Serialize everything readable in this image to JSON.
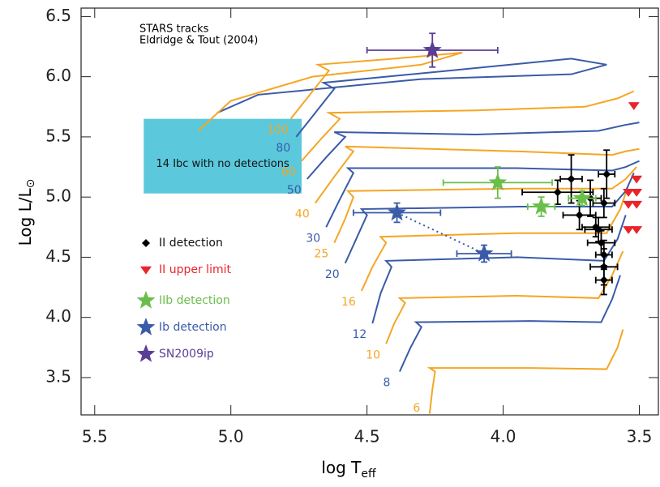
{
  "chart_data": {
    "type": "scatter",
    "annotations": [
      "STARS tracks",
      "Eldridge & Tout (2004)"
    ],
    "xlabel": "log T",
    "xlabel_sub": "eff",
    "ylabel": "Log L/L",
    "ylabel_sub": "⊙",
    "xlim": [
      5.55,
      3.43
    ],
    "ylim": [
      3.19,
      6.57
    ],
    "xticks": [
      5.5,
      {
        "value": 5,
        "label": "5.0"
      },
      4.5,
      {
        "value": 4,
        "label": "4.0"
      },
      3.5
    ],
    "yticks": [
      3.5,
      {
        "value": 4,
        "label": "4.0"
      },
      4.5,
      {
        "value": 5,
        "label": "5.0"
      },
      5.5,
      {
        "value": 6,
        "label": "6.0"
      },
      6.5
    ],
    "legend": "center left",
    "region": {
      "label": "14 Ibc with no detections",
      "color": "#5bc8dc",
      "x": [
        5.32,
        4.74
      ],
      "y": [
        5.03,
        5.65
      ]
    },
    "tracks": [
      {
        "name": "6",
        "color": "#f5a623",
        "x": [
          4.27,
          4.26,
          4.25,
          4.27,
          3.9,
          3.62,
          3.58,
          3.56
        ],
        "y": [
          3.2,
          3.4,
          3.55,
          3.58,
          3.58,
          3.57,
          3.75,
          3.9
        ]
      },
      {
        "name": "8",
        "color": "#3a5ba8",
        "x": [
          4.38,
          4.34,
          4.3,
          4.32,
          3.9,
          3.64,
          3.6,
          3.57
        ],
        "y": [
          3.55,
          3.75,
          3.92,
          3.96,
          3.97,
          3.96,
          4.15,
          4.35
        ]
      },
      {
        "name": "10",
        "color": "#f5a623",
        "x": [
          4.43,
          4.4,
          4.36,
          4.38,
          3.95,
          3.65,
          3.6,
          3.56
        ],
        "y": [
          3.78,
          3.95,
          4.12,
          4.16,
          4.18,
          4.16,
          4.35,
          4.55
        ]
      },
      {
        "name": "12",
        "color": "#3a5ba8",
        "x": [
          4.48,
          4.45,
          4.41,
          4.43,
          3.95,
          3.63,
          3.58,
          3.55
        ],
        "y": [
          3.95,
          4.2,
          4.42,
          4.47,
          4.5,
          4.47,
          4.65,
          4.85
        ]
      },
      {
        "name": "16",
        "color": "#f5a623",
        "x": [
          4.52,
          4.48,
          4.43,
          4.45,
          3.95,
          3.62,
          3.57,
          3.54
        ],
        "y": [
          4.22,
          4.42,
          4.62,
          4.67,
          4.7,
          4.7,
          4.9,
          5.1
        ]
      },
      {
        "name": "20",
        "color": "#3a5ba8",
        "x": [
          4.58,
          4.54,
          4.5,
          4.52,
          3.95,
          3.6,
          3.55,
          3.52
        ],
        "y": [
          4.45,
          4.65,
          4.85,
          4.9,
          4.92,
          4.92,
          5.05,
          5.2
        ]
      },
      {
        "name": "25",
        "color": "#f5a623",
        "x": [
          4.62,
          4.58,
          4.55,
          4.57,
          3.95,
          3.6,
          3.55,
          3.51
        ],
        "y": [
          4.62,
          4.82,
          5.0,
          5.05,
          5.07,
          5.07,
          5.15,
          5.25
        ]
      },
      {
        "name": "30",
        "color": "#3a5ba8",
        "x": [
          4.65,
          4.6,
          4.55,
          4.57,
          3.95,
          3.6,
          3.55,
          3.5
        ],
        "y": [
          4.75,
          4.98,
          5.2,
          5.24,
          5.24,
          5.22,
          5.25,
          5.3
        ]
      },
      {
        "name": "40",
        "color": "#f5a623",
        "x": [
          4.69,
          4.62,
          4.55,
          4.58,
          3.95,
          3.6,
          3.55,
          3.5
        ],
        "y": [
          4.95,
          5.17,
          5.38,
          5.42,
          5.38,
          5.35,
          5.38,
          5.4
        ]
      },
      {
        "name": "50",
        "color": "#3a5ba8",
        "x": [
          4.72,
          4.65,
          4.58,
          4.62,
          4.1,
          3.65,
          3.55,
          3.5
        ],
        "y": [
          5.15,
          5.33,
          5.5,
          5.54,
          5.52,
          5.55,
          5.6,
          5.62
        ]
      },
      {
        "name": "60",
        "color": "#f5a623",
        "x": [
          4.74,
          4.67,
          4.6,
          4.64,
          4.1,
          3.7,
          3.58,
          3.52
        ],
        "y": [
          5.3,
          5.48,
          5.65,
          5.7,
          5.72,
          5.75,
          5.82,
          5.88
        ]
      },
      {
        "name": "80",
        "color": "#3a5ba8",
        "x": [
          4.76,
          4.69,
          4.62,
          4.66,
          4.2,
          3.75,
          3.62,
          3.75,
          4.3,
          4.9,
          5.05
        ],
        "y": [
          5.5,
          5.7,
          5.9,
          5.95,
          6.05,
          6.15,
          6.1,
          6.02,
          5.98,
          5.85,
          5.7
        ]
      },
      {
        "name": "100",
        "color": "#f5a623",
        "x": [
          4.78,
          4.71,
          4.64,
          4.68,
          4.4,
          4.15,
          4.3,
          4.7,
          5.0,
          5.12
        ],
        "y": [
          5.65,
          5.85,
          6.05,
          6.1,
          6.15,
          6.2,
          6.1,
          6.0,
          5.8,
          5.55
        ]
      }
    ],
    "series": [
      {
        "name": "II detection",
        "color": "#000000",
        "marker": "diamond",
        "x": [
          3.75,
          3.8,
          3.72,
          3.68,
          3.66,
          3.65,
          3.63,
          3.62,
          3.64,
          3.63,
          3.63,
          3.63
        ],
        "y": [
          5.15,
          5.04,
          4.85,
          4.99,
          4.75,
          4.73,
          4.95,
          5.19,
          4.62,
          4.52,
          4.42,
          4.31
        ],
        "xerr": [
          0.04,
          0.13,
          0.06,
          0.04,
          0.05,
          0.05,
          0.04,
          0.03,
          0.05,
          0.03,
          0.05,
          0.03
        ],
        "yerr": [
          0.2,
          0.1,
          0.12,
          0.15,
          0.08,
          0.1,
          0.12,
          0.2,
          0.1,
          0.12,
          0.15,
          0.12
        ]
      },
      {
        "name": "II upper limit",
        "color": "#e8252b",
        "marker": "triangle-down",
        "x": [
          3.52,
          3.51,
          3.54,
          3.51,
          3.54,
          3.51,
          3.54,
          3.51
        ],
        "y": [
          5.76,
          5.15,
          5.04,
          5.04,
          4.94,
          4.94,
          4.73,
          4.73
        ]
      },
      {
        "name": "IIb detection",
        "color": "#6abf4b",
        "marker": "star",
        "x": [
          4.02,
          3.86,
          3.71
        ],
        "y": [
          5.12,
          4.92,
          4.99
        ],
        "xerr": [
          0.2,
          0.05,
          0.05
        ],
        "yerr": [
          0.13,
          0.08,
          0.06
        ]
      },
      {
        "name": "Ib detection",
        "color": "#3a5ba8",
        "marker": "star",
        "linestyle": "dotted",
        "x": [
          4.39,
          4.07
        ],
        "y": [
          4.87,
          4.53
        ],
        "xerr": [
          0.16,
          0.1
        ],
        "yerr": [
          0.08,
          0.07
        ]
      },
      {
        "name": "SN2009ip",
        "color": "#5a3e96",
        "marker": "star",
        "x": [
          4.26
        ],
        "y": [
          6.22
        ],
        "xerr": [
          0.24
        ],
        "yerr": [
          0.14
        ]
      }
    ]
  }
}
